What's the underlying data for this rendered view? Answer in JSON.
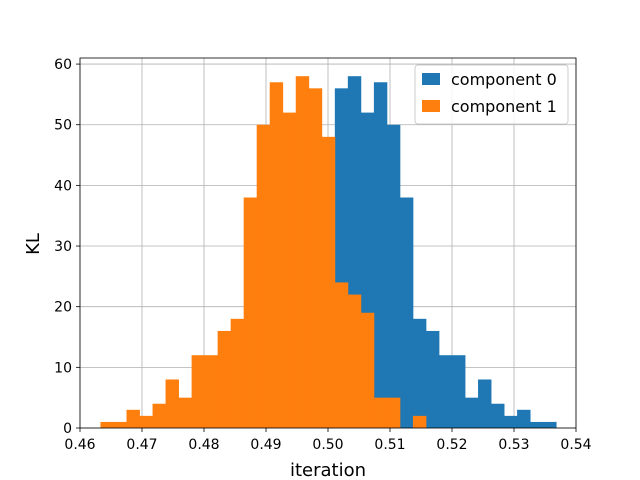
{
  "chart_data": {
    "type": "bar",
    "title": "",
    "xlabel": "iteration",
    "ylabel": "KL",
    "xlim": [
      0.46,
      0.54
    ],
    "ylim": [
      0,
      61
    ],
    "xticks": [
      "0.46",
      "0.47",
      "0.48",
      "0.49",
      "0.50",
      "0.51",
      "0.52",
      "0.53",
      "0.54"
    ],
    "yticks": [
      "0",
      "10",
      "20",
      "30",
      "40",
      "50",
      "60"
    ],
    "grid": true,
    "legend_position": "top-right",
    "series": [
      {
        "name": "component 0",
        "color": "#1f77b4",
        "bin_start": 0.4633,
        "bin_width": 0.0021,
        "values": [
          0,
          0,
          0,
          0,
          0,
          0,
          0,
          0,
          0,
          0,
          0,
          0,
          0,
          0,
          0,
          0,
          0,
          0,
          56,
          58,
          52,
          57,
          50,
          38,
          18,
          16,
          12,
          12,
          5,
          8,
          4,
          2,
          3,
          1,
          1
        ]
      },
      {
        "name": "component 1",
        "color": "#ff7f0e",
        "bin_start": 0.4633,
        "bin_width": 0.0021,
        "values": [
          1,
          1,
          3,
          2,
          4,
          8,
          5,
          12,
          12,
          16,
          18,
          38,
          50,
          57,
          52,
          58,
          56,
          48,
          24,
          22,
          19,
          5,
          5,
          0,
          2
        ]
      }
    ]
  }
}
